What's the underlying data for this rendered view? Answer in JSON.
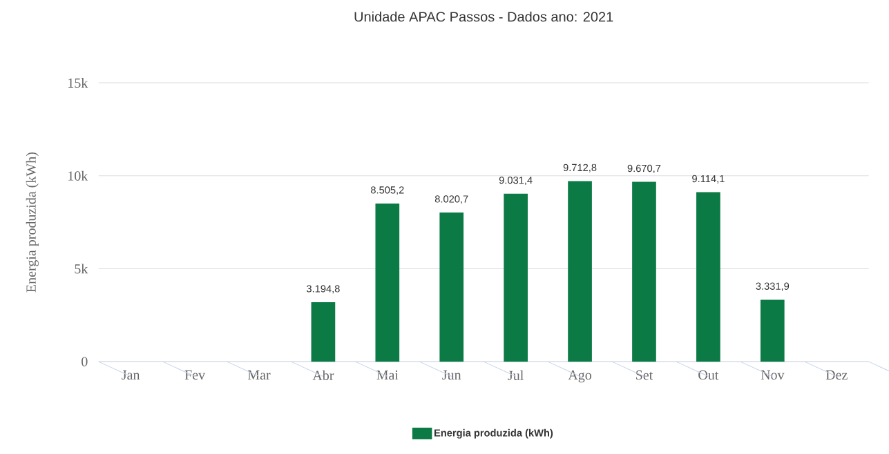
{
  "chart_data": {
    "type": "bar",
    "title": "Unidade APAC Passos - Dados ano: 2021",
    "ylabel": "Energia produzida (kWh)",
    "categories": [
      "Jan",
      "Fev",
      "Mar",
      "Abr",
      "Mai",
      "Jun",
      "Jul",
      "Ago",
      "Set",
      "Out",
      "Nov",
      "Dez"
    ],
    "series": [
      {
        "name": "Energia produzida (kWh)",
        "color": "#0b7a45",
        "values": [
          null,
          null,
          null,
          3194.8,
          8505.2,
          8020.7,
          9031.4,
          9712.8,
          9670.7,
          9114.1,
          3331.9,
          null
        ],
        "value_labels": [
          null,
          null,
          null,
          "3.194,8",
          "8.505,2",
          "8.020,7",
          "9.031,4",
          "9.712,8",
          "9.670,7",
          "9.114,1",
          "3.331,9",
          null
        ]
      }
    ],
    "ylim": [
      0,
      15000
    ],
    "yticks": [
      0,
      {
        "value": 5000,
        "label": "5k"
      },
      {
        "value": 10000,
        "label": "10k"
      },
      {
        "value": 15000,
        "label": "15k"
      }
    ],
    "grid": "y",
    "legend": "bottom"
  }
}
